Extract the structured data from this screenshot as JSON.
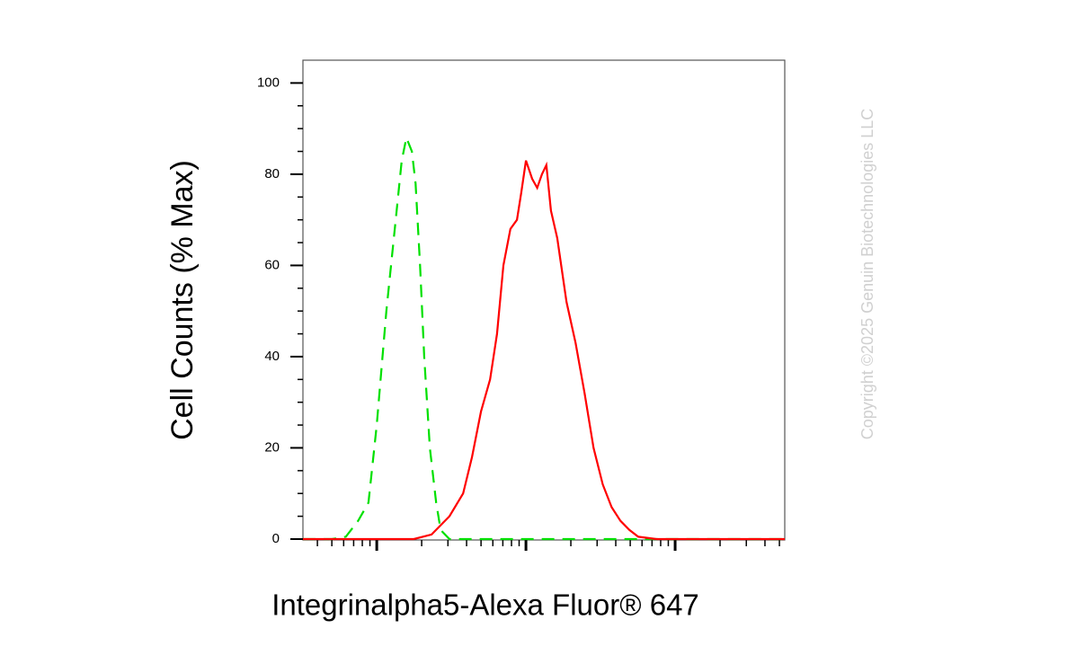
{
  "chart_data": {
    "type": "line",
    "ylabel": "Cell Counts (% Max)",
    "xlabel": "Integrinalpha5-Alexa Fluor® 647",
    "watermark": "Copyright ©2025 Genuin Biotechnologies LLC",
    "xscale": "log",
    "xlim": [
      3.2,
      5430
    ],
    "ylim": [
      -0.2,
      105
    ],
    "yticks": [
      0,
      20,
      40,
      60,
      80,
      100
    ],
    "series": [
      {
        "color": "#00e000",
        "dash": true,
        "x": [
          3.2,
          5,
          6.2,
          7.5,
          8.8,
          10,
          11.6,
          13.4,
          14.7,
          15.8,
          17.2,
          18.2,
          19.5,
          20.8,
          22.7,
          25,
          26.8,
          30.7,
          100,
          1000,
          5430
        ],
        "values": [
          0,
          0,
          0.5,
          4,
          8,
          25,
          50,
          70,
          83,
          88,
          85,
          78,
          60,
          40,
          20,
          8,
          2,
          0,
          0,
          0,
          0
        ]
      },
      {
        "color": "#ff0000",
        "dash": false,
        "x": [
          3.2,
          17.7,
          23.3,
          30.7,
          37.9,
          43.5,
          50,
          57.5,
          64,
          70.6,
          78.7,
          87,
          93,
          100,
          110,
          119,
          128,
          137,
          147,
          162,
          187,
          215,
          247,
          284,
          327,
          375,
          430,
          493,
          566,
          750,
          5430
        ],
        "values": [
          0,
          0,
          1,
          5,
          10,
          18,
          28,
          35,
          45,
          60,
          68,
          70,
          76,
          83,
          79,
          77,
          80,
          82,
          72,
          66,
          52,
          43,
          32,
          20,
          12,
          7,
          4,
          2,
          0.5,
          0,
          0
        ]
      }
    ]
  }
}
